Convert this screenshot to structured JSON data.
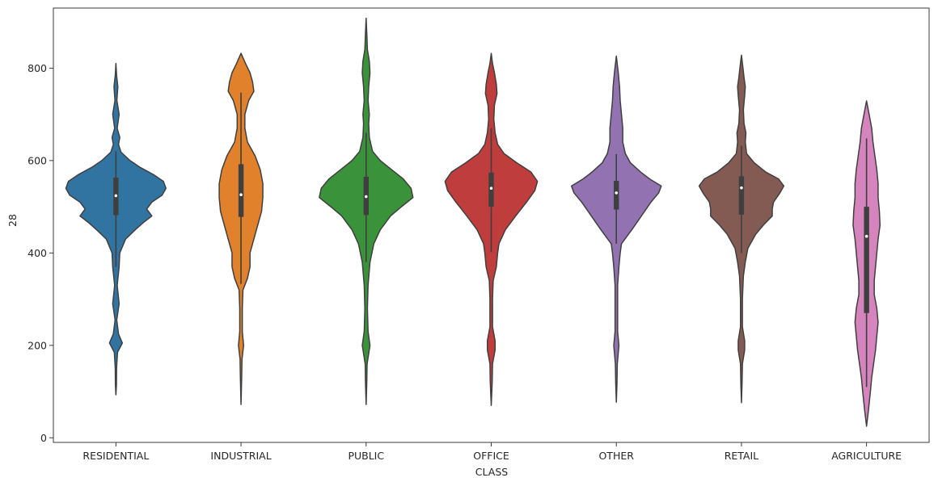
{
  "chart_data": {
    "type": "violin",
    "xlabel": "CLASS",
    "ylabel": "28",
    "ylim": [
      -10,
      930
    ],
    "yticks": [
      0,
      200,
      400,
      600,
      800
    ],
    "grid": false,
    "categories": [
      {
        "name": "RESIDENTIAL",
        "color": "#3274a1",
        "min": 93,
        "max": 810,
        "q1": 482,
        "median": 524,
        "q3": 563,
        "whisker_low": 370,
        "whisker_high": 620,
        "profile": [
          [
            93,
            0
          ],
          [
            115,
            0.8
          ],
          [
            150,
            1.0
          ],
          [
            185,
            2.5
          ],
          [
            205,
            10
          ],
          [
            225,
            4
          ],
          [
            255,
            1.3
          ],
          [
            290,
            5
          ],
          [
            330,
            2
          ],
          [
            370,
            5
          ],
          [
            400,
            6
          ],
          [
            430,
            15
          ],
          [
            450,
            30
          ],
          [
            465,
            42
          ],
          [
            480,
            56
          ],
          [
            495,
            48
          ],
          [
            510,
            56
          ],
          [
            525,
            72
          ],
          [
            540,
            78
          ],
          [
            555,
            74
          ],
          [
            570,
            58
          ],
          [
            585,
            38
          ],
          [
            600,
            22
          ],
          [
            618,
            8
          ],
          [
            635,
            4
          ],
          [
            650,
            6
          ],
          [
            670,
            2
          ],
          [
            700,
            5
          ],
          [
            730,
            1.5
          ],
          [
            760,
            3
          ],
          [
            785,
            1
          ],
          [
            810,
            0
          ]
        ]
      },
      {
        "name": "INDUSTRIAL",
        "color": "#e1812c",
        "min": 72,
        "max": 832,
        "q1": 478,
        "median": 526,
        "q3": 592,
        "whisker_low": 333,
        "whisker_high": 747,
        "profile": [
          [
            72,
            0
          ],
          [
            130,
            1
          ],
          [
            170,
            1.5
          ],
          [
            200,
            4
          ],
          [
            230,
            2
          ],
          [
            280,
            2
          ],
          [
            320,
            3
          ],
          [
            345,
            10
          ],
          [
            370,
            14
          ],
          [
            400,
            14
          ],
          [
            430,
            20
          ],
          [
            460,
            26
          ],
          [
            490,
            32
          ],
          [
            520,
            34
          ],
          [
            550,
            34
          ],
          [
            580,
            30
          ],
          [
            610,
            22
          ],
          [
            640,
            10
          ],
          [
            670,
            6
          ],
          [
            700,
            6
          ],
          [
            730,
            12
          ],
          [
            750,
            20
          ],
          [
            770,
            18
          ],
          [
            790,
            14
          ],
          [
            810,
            7
          ],
          [
            832,
            0
          ]
        ]
      },
      {
        "name": "PUBLIC",
        "color": "#3a923a",
        "min": 72,
        "max": 908,
        "q1": 482,
        "median": 522,
        "q3": 565,
        "whisker_low": 380,
        "whisker_high": 660,
        "profile": [
          [
            72,
            0
          ],
          [
            120,
            1
          ],
          [
            160,
            1.5
          ],
          [
            200,
            6
          ],
          [
            230,
            3
          ],
          [
            280,
            2
          ],
          [
            330,
            3
          ],
          [
            380,
            6
          ],
          [
            420,
            12
          ],
          [
            450,
            22
          ],
          [
            480,
            38
          ],
          [
            500,
            55
          ],
          [
            520,
            73
          ],
          [
            540,
            70
          ],
          [
            560,
            58
          ],
          [
            580,
            40
          ],
          [
            600,
            22
          ],
          [
            620,
            10
          ],
          [
            650,
            5
          ],
          [
            680,
            4
          ],
          [
            700,
            5
          ],
          [
            730,
            3
          ],
          [
            760,
            4
          ],
          [
            790,
            6
          ],
          [
            815,
            5
          ],
          [
            840,
            2
          ],
          [
            870,
            1.2
          ],
          [
            908,
            0
          ]
        ]
      },
      {
        "name": "OFFICE",
        "color": "#c03d3e",
        "min": 70,
        "max": 832,
        "q1": 500,
        "median": 540,
        "q3": 574,
        "whisker_low": 402,
        "whisker_high": 670,
        "profile": [
          [
            70,
            0
          ],
          [
            120,
            1.5
          ],
          [
            160,
            2
          ],
          [
            190,
            6
          ],
          [
            210,
            6
          ],
          [
            240,
            2
          ],
          [
            300,
            2
          ],
          [
            340,
            3
          ],
          [
            370,
            8
          ],
          [
            400,
            10
          ],
          [
            420,
            12
          ],
          [
            450,
            22
          ],
          [
            480,
            38
          ],
          [
            510,
            55
          ],
          [
            535,
            68
          ],
          [
            555,
            72
          ],
          [
            575,
            62
          ],
          [
            595,
            40
          ],
          [
            615,
            20
          ],
          [
            635,
            10
          ],
          [
            660,
            6
          ],
          [
            690,
            4
          ],
          [
            720,
            5
          ],
          [
            745,
            9
          ],
          [
            765,
            8
          ],
          [
            790,
            5
          ],
          [
            810,
            2
          ],
          [
            832,
            0
          ]
        ]
      },
      {
        "name": "OTHER",
        "color": "#9372b2",
        "min": 77,
        "max": 826,
        "q1": 494,
        "median": 530,
        "q3": 556,
        "whisker_low": 420,
        "whisker_high": 614,
        "profile": [
          [
            77,
            0
          ],
          [
            120,
            1
          ],
          [
            160,
            1.5
          ],
          [
            200,
            4
          ],
          [
            230,
            2
          ],
          [
            280,
            2
          ],
          [
            330,
            2
          ],
          [
            370,
            4
          ],
          [
            400,
            6
          ],
          [
            420,
            8
          ],
          [
            450,
            24
          ],
          [
            470,
            34
          ],
          [
            490,
            44
          ],
          [
            510,
            54
          ],
          [
            530,
            66
          ],
          [
            545,
            70
          ],
          [
            560,
            52
          ],
          [
            575,
            38
          ],
          [
            595,
            22
          ],
          [
            615,
            14
          ],
          [
            640,
            10
          ],
          [
            670,
            10
          ],
          [
            700,
            8
          ],
          [
            730,
            6
          ],
          [
            760,
            5
          ],
          [
            790,
            3
          ],
          [
            826,
            0
          ]
        ]
      },
      {
        "name": "RETAIL",
        "color": "#845b53",
        "min": 76,
        "max": 828,
        "q1": 483,
        "median": 541,
        "q3": 566,
        "whisker_low": 400,
        "whisker_high": 632,
        "profile": [
          [
            76,
            0
          ],
          [
            120,
            1
          ],
          [
            160,
            1.5
          ],
          [
            190,
            5
          ],
          [
            210,
            5
          ],
          [
            240,
            1.5
          ],
          [
            300,
            1.5
          ],
          [
            350,
            3
          ],
          [
            380,
            6
          ],
          [
            410,
            10
          ],
          [
            440,
            22
          ],
          [
            460,
            34
          ],
          [
            480,
            48
          ],
          [
            495,
            48
          ],
          [
            510,
            50
          ],
          [
            530,
            60
          ],
          [
            545,
            66
          ],
          [
            560,
            58
          ],
          [
            575,
            38
          ],
          [
            595,
            20
          ],
          [
            615,
            8
          ],
          [
            640,
            6
          ],
          [
            660,
            7
          ],
          [
            680,
            4
          ],
          [
            710,
            3
          ],
          [
            740,
            5
          ],
          [
            760,
            6
          ],
          [
            780,
            4
          ],
          [
            805,
            2
          ],
          [
            828,
            0
          ]
        ]
      },
      {
        "name": "AGRICULTURE",
        "color": "#d684bd",
        "min": 25,
        "max": 729,
        "q1": 270,
        "median": 436,
        "q3": 500,
        "whisker_low": 110,
        "whisker_high": 648,
        "profile": [
          [
            25,
            0
          ],
          [
            60,
            3
          ],
          [
            100,
            6
          ],
          [
            130,
            8
          ],
          [
            160,
            11
          ],
          [
            190,
            14
          ],
          [
            220,
            16
          ],
          [
            250,
            18
          ],
          [
            280,
            16
          ],
          [
            310,
            12
          ],
          [
            340,
            12
          ],
          [
            370,
            14
          ],
          [
            400,
            16
          ],
          [
            430,
            18
          ],
          [
            460,
            21
          ],
          [
            490,
            20
          ],
          [
            520,
            18
          ],
          [
            550,
            18
          ],
          [
            580,
            16
          ],
          [
            610,
            13
          ],
          [
            640,
            10
          ],
          [
            670,
            8
          ],
          [
            700,
            4
          ],
          [
            729,
            0
          ]
        ]
      }
    ]
  }
}
